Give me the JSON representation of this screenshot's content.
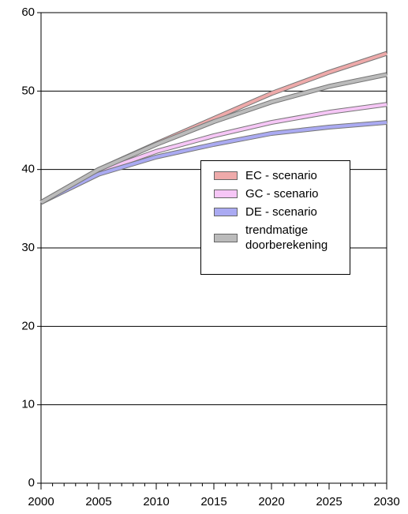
{
  "chart_data": {
    "type": "line",
    "x": [
      2000,
      2005,
      2010,
      2015,
      2020,
      2025,
      2030
    ],
    "series": [
      {
        "name": "EC - scenario",
        "color": "#eeaaaa",
        "values": [
          35.8,
          40.0,
          43.3,
          46.5,
          49.7,
          52.4,
          54.8
        ]
      },
      {
        "name": "GC - scenario",
        "color": "#f6c6f6",
        "values": [
          35.8,
          39.7,
          42.3,
          44.3,
          46.0,
          47.3,
          48.3
        ]
      },
      {
        "name": "DE - scenario",
        "color": "#aaaaf2",
        "values": [
          35.8,
          39.4,
          41.6,
          43.2,
          44.6,
          45.4,
          46.0
        ]
      },
      {
        "name": "trendmatige doorberekening",
        "color": "#bbbbbb",
        "values": [
          35.8,
          40.0,
          43.2,
          46.1,
          48.6,
          50.6,
          52.1
        ]
      }
    ],
    "xlim": [
      2000,
      2030
    ],
    "xticks": [
      2000,
      2005,
      2010,
      2015,
      2020,
      2025,
      2030
    ],
    "ylim": [
      0,
      60
    ],
    "yticks": [
      0,
      10,
      20,
      30,
      40,
      50,
      60
    ],
    "grid": true
  }
}
